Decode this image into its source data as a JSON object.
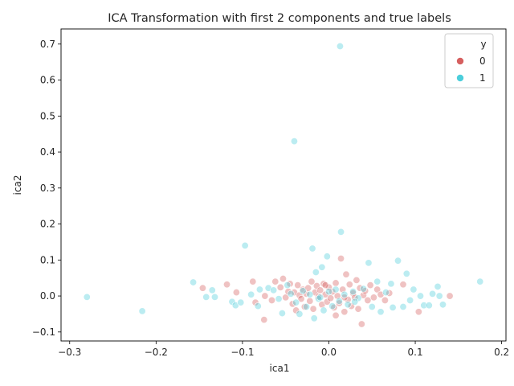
{
  "chart_data": {
    "type": "scatter",
    "title": "ICA Transformation with first 2 components and true labels",
    "xlabel": "ica1",
    "ylabel": "ica2",
    "xlim": [
      -0.31,
      0.205
    ],
    "ylim": [
      -0.125,
      0.742
    ],
    "xticks": [
      -0.3,
      -0.2,
      -0.1,
      0.0,
      0.1,
      0.2
    ],
    "xtick_labels": [
      "−0.3",
      "−0.2",
      "−0.1",
      "0.0",
      "0.1",
      "0.2"
    ],
    "yticks": [
      -0.1,
      0.0,
      0.1,
      0.2,
      0.3,
      0.4,
      0.5,
      0.6,
      0.7
    ],
    "ytick_labels": [
      "−0.1",
      "0.0",
      "0.1",
      "0.2",
      "0.3",
      "0.4",
      "0.5",
      "0.6",
      "0.7"
    ],
    "grid": false,
    "legend": {
      "title": "y",
      "placement": "top-right"
    },
    "series": [
      {
        "name": "0",
        "color": "#d65f5f",
        "points": [
          [
            -0.075,
            -0.066
          ],
          [
            -0.146,
            0.022
          ],
          [
            -0.118,
            0.032
          ],
          [
            -0.107,
            0.01
          ],
          [
            -0.085,
            -0.018
          ],
          [
            -0.088,
            0.04
          ],
          [
            -0.074,
            0.0
          ],
          [
            -0.066,
            -0.012
          ],
          [
            -0.062,
            0.04
          ],
          [
            -0.056,
            0.024
          ],
          [
            -0.053,
            0.048
          ],
          [
            -0.05,
            -0.004
          ],
          [
            -0.047,
            0.012
          ],
          [
            -0.045,
            0.034
          ],
          [
            -0.042,
            -0.022
          ],
          [
            -0.04,
            0.01
          ],
          [
            -0.038,
            -0.04
          ],
          [
            -0.036,
            0.03
          ],
          [
            -0.034,
            0.002
          ],
          [
            -0.032,
            -0.008
          ],
          [
            -0.03,
            0.018
          ],
          [
            -0.028,
            -0.03
          ],
          [
            -0.026,
            0.006
          ],
          [
            -0.024,
            0.022
          ],
          [
            -0.022,
            -0.014
          ],
          [
            -0.02,
            0.04
          ],
          [
            -0.018,
            -0.036
          ],
          [
            -0.016,
            0.01
          ],
          [
            -0.014,
            0.028
          ],
          [
            -0.012,
            -0.002
          ],
          [
            -0.01,
            0.016
          ],
          [
            -0.008,
            -0.024
          ],
          [
            -0.006,
            0.034
          ],
          [
            -0.004,
            0.004
          ],
          [
            -0.002,
            -0.016
          ],
          [
            0.0,
            0.024
          ],
          [
            0.002,
            -0.006
          ],
          [
            0.004,
            0.012
          ],
          [
            0.006,
            -0.032
          ],
          [
            0.008,
            0.036
          ],
          [
            0.01,
            0.0
          ],
          [
            0.012,
            -0.02
          ],
          [
            0.014,
            0.104
          ],
          [
            0.016,
            0.018
          ],
          [
            0.018,
            -0.044
          ],
          [
            0.02,
            0.06
          ],
          [
            0.022,
            -0.01
          ],
          [
            0.024,
            0.032
          ],
          [
            0.026,
            -0.028
          ],
          [
            0.028,
            0.008
          ],
          [
            0.03,
            -0.004
          ],
          [
            0.032,
            0.044
          ],
          [
            0.034,
            -0.036
          ],
          [
            0.036,
            0.022
          ],
          [
            0.038,
            -0.078
          ],
          [
            0.04,
            0.002
          ],
          [
            0.042,
            0.014
          ],
          [
            0.045,
            -0.012
          ],
          [
            0.048,
            0.03
          ],
          [
            0.052,
            -0.004
          ],
          [
            0.056,
            0.018
          ],
          [
            0.06,
            0.004
          ],
          [
            0.065,
            -0.012
          ],
          [
            0.07,
            0.008
          ],
          [
            0.086,
            0.032
          ],
          [
            0.104,
            -0.044
          ],
          [
            0.14,
            0.0
          ],
          [
            0.008,
            -0.054
          ],
          [
            -0.004,
            0.03
          ],
          [
            0.018,
            -0.004
          ]
        ]
      },
      {
        "name": "1",
        "color": "#4ccedb",
        "points": [
          [
            -0.28,
            -0.003
          ],
          [
            -0.216,
            -0.042
          ],
          [
            -0.157,
            0.038
          ],
          [
            -0.142,
            -0.003
          ],
          [
            -0.135,
            0.016
          ],
          [
            -0.132,
            -0.003
          ],
          [
            -0.112,
            -0.016
          ],
          [
            -0.108,
            -0.026
          ],
          [
            -0.102,
            -0.018
          ],
          [
            -0.097,
            0.14
          ],
          [
            -0.09,
            0.004
          ],
          [
            -0.082,
            -0.028
          ],
          [
            -0.08,
            0.018
          ],
          [
            -0.07,
            0.022
          ],
          [
            -0.064,
            0.016
          ],
          [
            -0.058,
            -0.008
          ],
          [
            -0.054,
            -0.048
          ],
          [
            -0.048,
            0.03
          ],
          [
            -0.044,
            0.006
          ],
          [
            -0.04,
            0.43
          ],
          [
            -0.038,
            -0.018
          ],
          [
            -0.034,
            -0.05
          ],
          [
            -0.03,
            0.014
          ],
          [
            -0.026,
            -0.03
          ],
          [
            -0.022,
            0.004
          ],
          [
            -0.019,
            0.132
          ],
          [
            -0.017,
            -0.062
          ],
          [
            -0.015,
            0.066
          ],
          [
            -0.012,
            -0.008
          ],
          [
            -0.008,
            0.08
          ],
          [
            -0.006,
            -0.04
          ],
          [
            -0.002,
            0.11
          ],
          [
            0.0,
            0.012
          ],
          [
            0.004,
            -0.028
          ],
          [
            0.008,
            0.018
          ],
          [
            0.012,
            -0.014
          ],
          [
            0.013,
            0.694
          ],
          [
            0.014,
            0.178
          ],
          [
            0.018,
            0.004
          ],
          [
            0.022,
            -0.024
          ],
          [
            0.028,
            0.012
          ],
          [
            0.034,
            -0.006
          ],
          [
            0.04,
            0.02
          ],
          [
            0.046,
            0.092
          ],
          [
            0.05,
            -0.03
          ],
          [
            0.056,
            0.04
          ],
          [
            0.06,
            -0.044
          ],
          [
            0.066,
            0.01
          ],
          [
            0.072,
            0.034
          ],
          [
            0.074,
            -0.032
          ],
          [
            0.08,
            0.098
          ],
          [
            0.086,
            -0.03
          ],
          [
            0.09,
            0.062
          ],
          [
            0.094,
            -0.012
          ],
          [
            0.098,
            0.018
          ],
          [
            0.106,
            0.0
          ],
          [
            0.11,
            -0.026
          ],
          [
            0.116,
            -0.026
          ],
          [
            0.12,
            0.006
          ],
          [
            0.126,
            0.026
          ],
          [
            0.128,
            0.0
          ],
          [
            0.132,
            -0.024
          ],
          [
            0.175,
            0.04
          ],
          [
            0.03,
            -0.016
          ],
          [
            -0.01,
            -0.004
          ]
        ]
      }
    ]
  }
}
